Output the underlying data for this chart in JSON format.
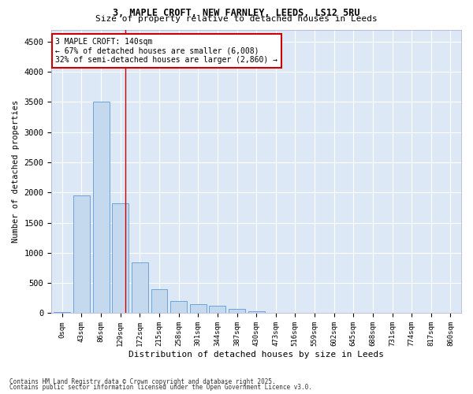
{
  "title_line1": "3, MAPLE CROFT, NEW FARNLEY, LEEDS, LS12 5RU",
  "title_line2": "Size of property relative to detached houses in Leeds",
  "xlabel": "Distribution of detached houses by size in Leeds",
  "ylabel": "Number of detached properties",
  "bar_labels": [
    "0sqm",
    "43sqm",
    "86sqm",
    "129sqm",
    "172sqm",
    "215sqm",
    "258sqm",
    "301sqm",
    "344sqm",
    "387sqm",
    "430sqm",
    "473sqm",
    "516sqm",
    "559sqm",
    "602sqm",
    "645sqm",
    "688sqm",
    "731sqm",
    "774sqm",
    "817sqm",
    "860sqm"
  ],
  "bar_values": [
    25,
    1950,
    3500,
    1820,
    840,
    400,
    200,
    155,
    120,
    75,
    30,
    0,
    0,
    0,
    0,
    0,
    0,
    0,
    0,
    0,
    0
  ],
  "bar_color": "#c5d9ee",
  "bar_edge_color": "#5b9bd5",
  "bg_color": "#dce8f5",
  "grid_color": "#ffffff",
  "annotation_text": "3 MAPLE CROFT: 140sqm\n← 67% of detached houses are smaller (6,008)\n32% of semi-detached houses are larger (2,860) →",
  "annotation_box_color": "#ffffff",
  "annotation_box_edge": "#cc0000",
  "vertical_line_x": 3.25,
  "ylim": [
    0,
    4700
  ],
  "yticks": [
    0,
    500,
    1000,
    1500,
    2000,
    2500,
    3000,
    3500,
    4000,
    4500
  ],
  "footer_line1": "Contains HM Land Registry data © Crown copyright and database right 2025.",
  "footer_line2": "Contains public sector information licensed under the Open Government Licence v3.0."
}
